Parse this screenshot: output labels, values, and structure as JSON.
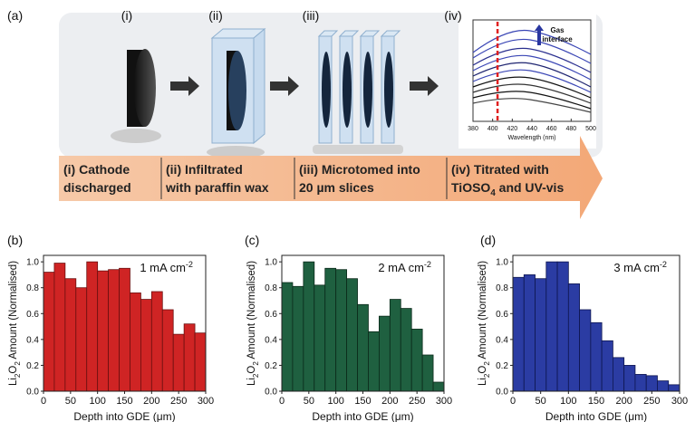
{
  "schematic": {
    "label": "(a)",
    "steps": [
      {
        "numeral": "(i)",
        "lines": [
          [
            "(i)  Cathode"
          ],
          [
            "discharged"
          ]
        ]
      },
      {
        "numeral": "(ii)",
        "lines": [
          [
            "(ii) Infiltrated"
          ],
          [
            "with paraffin wax"
          ]
        ]
      },
      {
        "numeral": "(iii)",
        "lines": [
          [
            "(iii) Microtomed into"
          ],
          [
            "20 µm slices"
          ]
        ]
      },
      {
        "numeral": "(iv)",
        "lines": [
          [
            "(iv) Titrated with"
          ],
          [
            "TiOSO",
            "4",
            " and UV-vis"
          ]
        ]
      }
    ],
    "inset": {
      "xlim": [
        380,
        500
      ],
      "xticks": [
        380,
        400,
        420,
        440,
        460,
        480,
        500
      ],
      "xlabel": "Wavelength (nm)",
      "annotation": [
        "Gas",
        "interface"
      ],
      "marker_x": 405
    }
  },
  "chart_data": [
    {
      "type": "histogram",
      "label": "(b)",
      "annotation": [
        "1 mA cm",
        "-2"
      ],
      "color": "#cf2424",
      "edge": "#6b0f0f",
      "xlabel": "Depth into GDE (μm)",
      "ylabel": [
        "Li",
        "2",
        "O",
        "2",
        " Amount (Normalised)"
      ],
      "bins": [
        0,
        20,
        40,
        60,
        80,
        100,
        120,
        140,
        160,
        180,
        200,
        220,
        240,
        260,
        280,
        300
      ],
      "values": [
        0.92,
        0.99,
        0.87,
        0.8,
        1.0,
        0.93,
        0.94,
        0.95,
        0.76,
        0.71,
        0.77,
        0.63,
        0.44,
        0.52,
        0.45
      ],
      "xlim": [
        0,
        300
      ],
      "xticks": [
        0,
        50,
        100,
        150,
        200,
        250,
        300
      ],
      "ylim": [
        0,
        1.05
      ],
      "yticks": [
        {
          "value": 0,
          "label": "0.0"
        },
        0.2,
        0.4,
        0.6,
        0.8,
        {
          "value": 1,
          "label": "1.0"
        }
      ]
    },
    {
      "type": "histogram",
      "label": "(c)",
      "annotation": [
        "2 mA cm",
        "-2"
      ],
      "color": "#1f6040",
      "edge": "#0b2a1a",
      "xlabel": "Depth into GDE (μm)",
      "ylabel": [
        "Li",
        "2",
        "O",
        "2",
        " Amount (Normalised)"
      ],
      "bins": [
        0,
        20,
        40,
        60,
        80,
        100,
        120,
        140,
        160,
        180,
        200,
        220,
        240,
        260,
        280,
        300
      ],
      "values": [
        0.84,
        0.81,
        1.0,
        0.82,
        0.95,
        0.94,
        0.87,
        0.67,
        0.46,
        0.58,
        0.71,
        0.64,
        0.48,
        0.28,
        0.07
      ],
      "xlim": [
        0,
        300
      ],
      "xticks": [
        0,
        50,
        100,
        150,
        200,
        250,
        300
      ],
      "ylim": [
        0,
        1.05
      ],
      "yticks": [
        {
          "value": 0,
          "label": "0.0"
        },
        0.2,
        0.4,
        0.6,
        0.8,
        {
          "value": 1,
          "label": "1.0"
        }
      ]
    },
    {
      "type": "histogram",
      "label": "(d)",
      "annotation": [
        "3 mA cm",
        "-2"
      ],
      "color": "#2b3ca3",
      "edge": "#0e1650",
      "xlabel": "Depth into GDE (μm)",
      "ylabel": [
        "Li",
        "2",
        "O",
        "2",
        " Amount (Normalised)"
      ],
      "bins": [
        0,
        20,
        40,
        60,
        80,
        100,
        120,
        140,
        160,
        180,
        200,
        220,
        240,
        260,
        280,
        300
      ],
      "values": [
        0.88,
        0.9,
        0.87,
        1.0,
        1.0,
        0.83,
        0.63,
        0.53,
        0.39,
        0.26,
        0.2,
        0.13,
        0.12,
        0.08,
        0.05
      ],
      "xlim": [
        0,
        300
      ],
      "xticks": [
        0,
        50,
        100,
        150,
        200,
        250,
        300
      ],
      "ylim": [
        0,
        1.05
      ],
      "yticks": [
        {
          "value": 0,
          "label": "0.0"
        },
        0.2,
        0.4,
        0.6,
        0.8,
        {
          "value": 1,
          "label": "1.0"
        }
      ]
    }
  ]
}
